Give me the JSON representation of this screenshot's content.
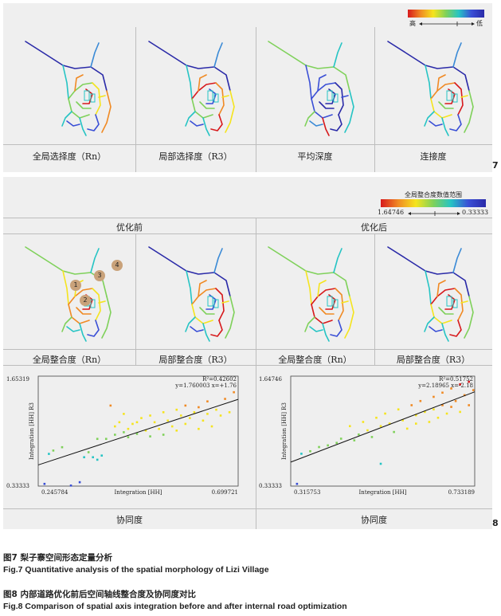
{
  "fig7": {
    "number": "7",
    "legend": {
      "high": "高",
      "low": "低"
    },
    "panels": [
      "全局选择度（Rn）",
      "局部选择度（R3）",
      "平均深度",
      "连接度"
    ]
  },
  "fig8": {
    "number": "8",
    "legend": {
      "title": "全局整合度数值范围",
      "max": "1.64746",
      "min": "0.33333"
    },
    "headers": {
      "before": "优化前",
      "after": "优化后"
    },
    "panels": [
      "全局整合度（Rn）",
      "局部整合度（R3）",
      "全局整合度（Rn）",
      "局部整合度（R3）"
    ],
    "markers": [
      "1",
      "2",
      "3",
      "4"
    ],
    "scatter_footer": "协同度"
  },
  "chart_data": [
    {
      "type": "scatter",
      "title": "",
      "xlabel": "Integration [HH]",
      "ylabel": "Integration [HH] R3",
      "xlim": [
        0.245784,
        0.699721
      ],
      "ylim": [
        0.33333,
        1.65319
      ],
      "stats": {
        "r2": "R²=0.42602",
        "equation": "y=1.760003   x=+1.76"
      },
      "fit_line": {
        "slope": 1.76,
        "intercept": 0.0
      },
      "points": [
        [
          0.26,
          0.36
        ],
        [
          0.27,
          0.72
        ],
        [
          0.28,
          0.76
        ],
        [
          0.3,
          0.8
        ],
        [
          0.32,
          0.34
        ],
        [
          0.34,
          0.38
        ],
        [
          0.35,
          0.68
        ],
        [
          0.36,
          0.74
        ],
        [
          0.37,
          0.68
        ],
        [
          0.38,
          0.65
        ],
        [
          0.38,
          0.9
        ],
        [
          0.39,
          0.7
        ],
        [
          0.4,
          0.9
        ],
        [
          0.41,
          1.3
        ],
        [
          0.42,
          0.95
        ],
        [
          0.42,
          1.05
        ],
        [
          0.43,
          1.1
        ],
        [
          0.44,
          0.98
        ],
        [
          0.44,
          1.2
        ],
        [
          0.45,
          1.02
        ],
        [
          0.45,
          0.92
        ],
        [
          0.46,
          1.08
        ],
        [
          0.47,
          1.1
        ],
        [
          0.47,
          0.96
        ],
        [
          0.48,
          1.15
        ],
        [
          0.49,
          1.0
        ],
        [
          0.5,
          1.18
        ],
        [
          0.5,
          0.93
        ],
        [
          0.51,
          1.1
        ],
        [
          0.52,
          1.02
        ],
        [
          0.53,
          1.22
        ],
        [
          0.53,
          0.95
        ],
        [
          0.54,
          1.12
        ],
        [
          0.55,
          1.05
        ],
        [
          0.56,
          1.25
        ],
        [
          0.56,
          1.0
        ],
        [
          0.57,
          1.18
        ],
        [
          0.58,
          1.08
        ],
        [
          0.58,
          1.3
        ],
        [
          0.59,
          1.15
        ],
        [
          0.6,
          1.22
        ],
        [
          0.61,
          1.02
        ],
        [
          0.61,
          1.28
        ],
        [
          0.62,
          1.12
        ],
        [
          0.63,
          1.2
        ],
        [
          0.63,
          1.35
        ],
        [
          0.64,
          1.05
        ],
        [
          0.65,
          1.25
        ],
        [
          0.66,
          1.18
        ],
        [
          0.67,
          1.38
        ],
        [
          0.68,
          1.22
        ],
        [
          0.69,
          1.46
        ]
      ]
    },
    {
      "type": "scatter",
      "title": "",
      "xlabel": "Integration [HH]",
      "ylabel": "Integration [HH] R3",
      "xlim": [
        0.315753,
        0.733189
      ],
      "ylim": [
        0.33333,
        1.64746
      ],
      "stats": {
        "r2": "R²=0.51752",
        "equation": "y=2.18965   x=-2.18"
      },
      "fit_line": {
        "slope": 2.19,
        "intercept": 0.0
      },
      "points": [
        [
          0.33,
          0.36
        ],
        [
          0.34,
          0.72
        ],
        [
          0.36,
          0.75
        ],
        [
          0.38,
          0.8
        ],
        [
          0.4,
          0.82
        ],
        [
          0.42,
          0.85
        ],
        [
          0.43,
          0.9
        ],
        [
          0.45,
          1.05
        ],
        [
          0.46,
          0.88
        ],
        [
          0.47,
          0.95
        ],
        [
          0.48,
          1.1
        ],
        [
          0.49,
          1.0
        ],
        [
          0.5,
          0.92
        ],
        [
          0.51,
          1.15
        ],
        [
          0.52,
          1.05
        ],
        [
          0.52,
          0.6
        ],
        [
          0.53,
          1.2
        ],
        [
          0.54,
          1.08
        ],
        [
          0.55,
          0.98
        ],
        [
          0.56,
          1.25
        ],
        [
          0.57,
          1.12
        ],
        [
          0.58,
          1.02
        ],
        [
          0.59,
          1.3
        ],
        [
          0.6,
          1.18
        ],
        [
          0.6,
          1.08
        ],
        [
          0.61,
          1.35
        ],
        [
          0.62,
          1.22
        ],
        [
          0.63,
          1.1
        ],
        [
          0.64,
          1.4
        ],
        [
          0.64,
          1.25
        ],
        [
          0.65,
          1.15
        ],
        [
          0.66,
          1.45
        ],
        [
          0.66,
          1.3
        ],
        [
          0.67,
          1.2
        ],
        [
          0.68,
          1.5
        ],
        [
          0.68,
          1.28
        ],
        [
          0.69,
          1.35
        ],
        [
          0.7,
          1.55
        ],
        [
          0.7,
          1.22
        ],
        [
          0.71,
          1.42
        ],
        [
          0.72,
          1.58
        ],
        [
          0.72,
          1.3
        ],
        [
          0.73,
          1.48
        ]
      ]
    }
  ],
  "captions": {
    "fig7_cn": "图7  梨子寨空间形态定量分析",
    "fig7_en": "Fig.7  Quantitative analysis of the spatial morphology of Lizi Village",
    "fig8_cn": "图8  内部道路优化前后空间轴线整合度及协同度对比",
    "fig8_en": "Fig.8  Comparison of spatial axis integration before and after internal road optimization"
  }
}
